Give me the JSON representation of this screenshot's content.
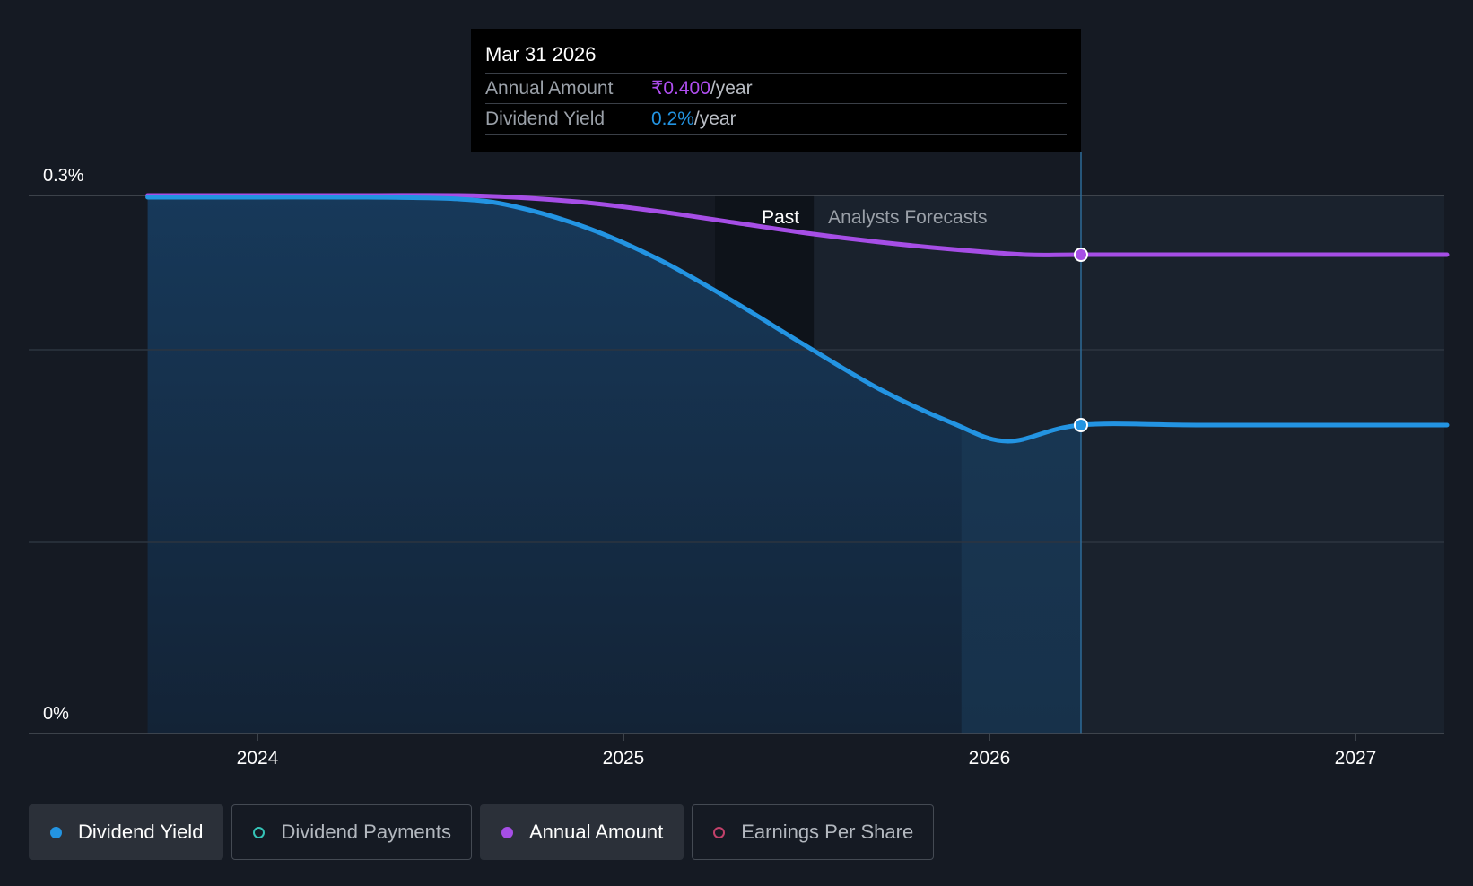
{
  "chart_data": {
    "type": "area",
    "y_ticks": [
      "0.3%",
      "0%"
    ],
    "x_ticks": [
      "2024",
      "2025",
      "2026",
      "2027"
    ],
    "x_tick_years": [
      2024,
      2025,
      2026,
      2027
    ],
    "x_range": [
      2023.55,
      2027.25
    ],
    "y_range": [
      0,
      0.3
    ],
    "grid": true,
    "past_label": "Past",
    "forecast_label": "Analysts Forecasts",
    "past_end_x": 2025.25,
    "forecast_start_x": 2025.52,
    "hover_x": 2026.25,
    "series": [
      {
        "name": "Dividend Yield",
        "color": "#2394e2",
        "values_x": [
          2023.7,
          2024.0,
          2024.3,
          2024.55,
          2024.7,
          2024.9,
          2025.1,
          2025.3,
          2025.5,
          2025.7,
          2025.9,
          2026.05,
          2026.25,
          2026.6,
          2027.25
        ],
        "values_y": [
          0.299,
          0.299,
          0.299,
          0.298,
          0.294,
          0.282,
          0.264,
          0.241,
          0.216,
          0.192,
          0.173,
          0.163,
          0.172,
          0.172,
          0.172
        ]
      },
      {
        "name": "Annual Amount",
        "color": "#a64ee6",
        "values_x": [
          2023.7,
          2024.0,
          2024.3,
          2024.55,
          2024.7,
          2024.9,
          2025.1,
          2025.3,
          2025.5,
          2025.7,
          2025.9,
          2026.1,
          2026.25,
          2026.6,
          2027.25
        ],
        "values_y": [
          0.3,
          0.3,
          0.3,
          0.3,
          0.299,
          0.296,
          0.291,
          0.285,
          0.279,
          0.274,
          0.27,
          0.267,
          0.267,
          0.267,
          0.267
        ]
      }
    ]
  },
  "tooltip": {
    "date": "Mar 31 2026",
    "rows": [
      {
        "label": "Annual Amount",
        "value": "₹0.400",
        "unit": "/year",
        "color": "#b04ef0"
      },
      {
        "label": "Dividend Yield",
        "value": "0.2%",
        "unit": "/year",
        "color": "#2394e2"
      }
    ]
  },
  "legend": [
    {
      "label": "Dividend Yield",
      "color": "#2394e2",
      "active": true
    },
    {
      "label": "Dividend Payments",
      "color": "#35c3b7",
      "active": false
    },
    {
      "label": "Annual Amount",
      "color": "#a64ee6",
      "active": true
    },
    {
      "label": "Earnings Per Share",
      "color": "#c2416a",
      "active": false
    }
  ]
}
